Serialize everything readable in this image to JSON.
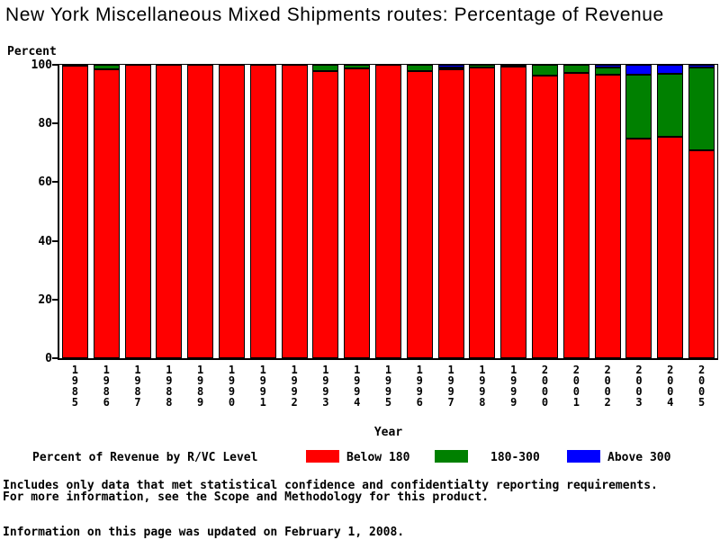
{
  "page": {
    "notes": [
      "Includes only data that met statistical confidence and confidentialty reporting requirements.",
      "For more information, see the Scope and Methodology for this product."
    ],
    "updated_line": "Information on this page was updated on February 1, 2008."
  },
  "chart_data": {
    "type": "bar",
    "stacked": true,
    "title": "New York Miscellaneous Mixed Shipments routes: Percentage of Revenue",
    "xlabel": "Year",
    "ylabel": "Percent",
    "ylim": [
      0,
      100
    ],
    "yticks": [
      0,
      20,
      40,
      60,
      80,
      100
    ],
    "grid": false,
    "legend_position": "bottom",
    "legend_title": "Percent of Revenue by R/VC Level",
    "categories": [
      "1985",
      "1986",
      "1987",
      "1988",
      "1989",
      "1990",
      "1991",
      "1992",
      "1993",
      "1994",
      "1995",
      "1996",
      "1997",
      "1998",
      "1999",
      "2000",
      "2001",
      "2002",
      "2003",
      "2004",
      "2005"
    ],
    "series": [
      {
        "name": "Below 180",
        "color": "#FF0000",
        "values": [
          99.6,
          98.6,
          100,
          100,
          100,
          100,
          100,
          100,
          97.9,
          98.9,
          100,
          98.0,
          98.4,
          99.0,
          99.5,
          96.4,
          97.2,
          96.5,
          74.7,
          75.5,
          71.0
        ]
      },
      {
        "name": "180-300",
        "color": "#008000",
        "values": [
          0.4,
          1.4,
          0,
          0,
          0,
          0,
          0,
          0,
          2.1,
          1.1,
          0,
          2.0,
          0.8,
          1.0,
          0.5,
          3.6,
          2.8,
          2.7,
          21.8,
          21.5,
          28.0
        ]
      },
      {
        "name": "Above 300",
        "color": "#0000FF",
        "values": [
          0,
          0,
          0,
          0,
          0,
          0,
          0,
          0,
          0,
          0,
          0,
          0,
          0.8,
          0,
          0,
          0,
          0,
          0.8,
          3.5,
          3.0,
          1.0
        ]
      }
    ]
  }
}
